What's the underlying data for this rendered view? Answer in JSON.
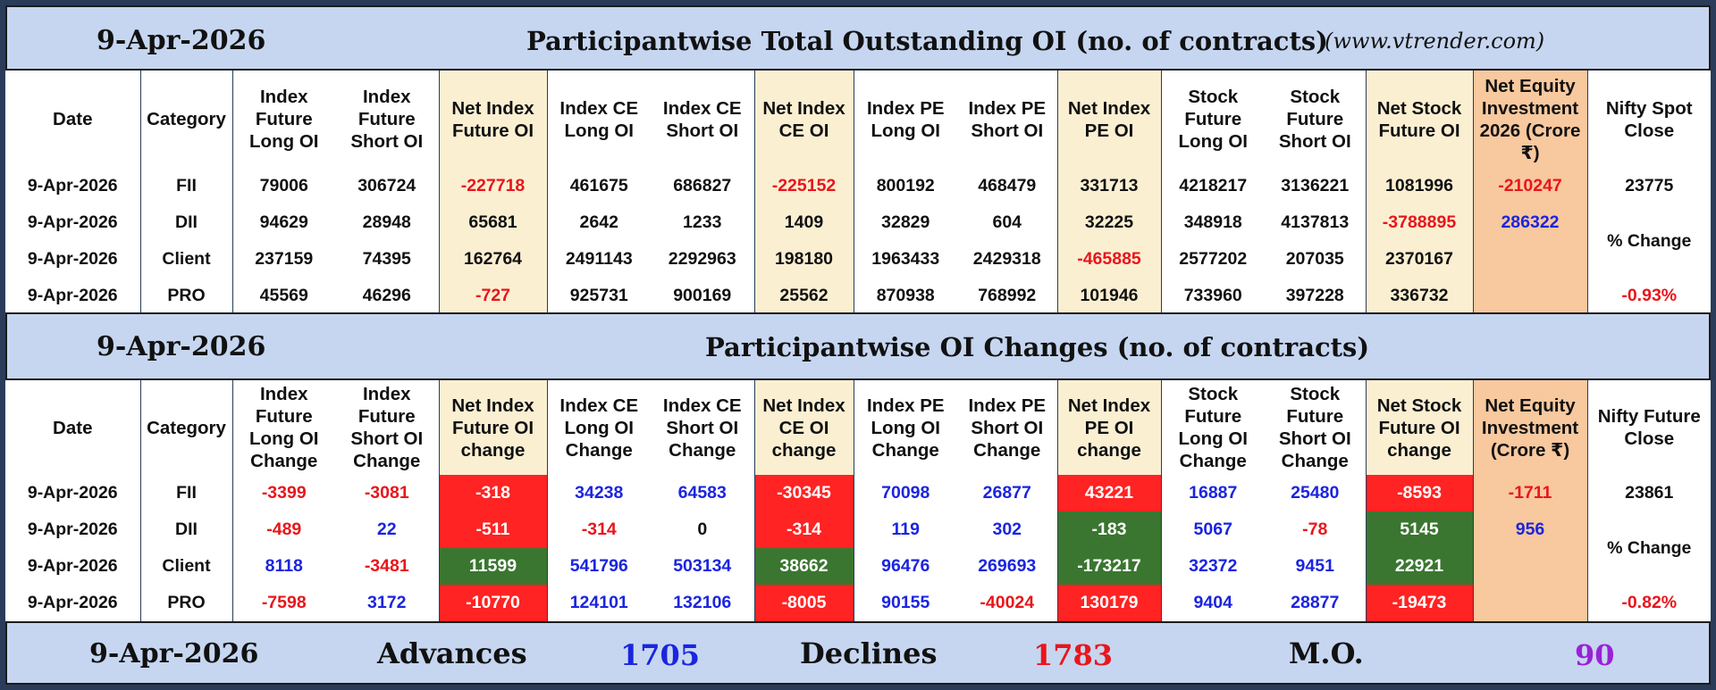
{
  "header1": {
    "date": "9-Apr-2026",
    "title": "Participantwise Total Outstanding OI (no. of contracts)",
    "site": "(www.vtrender.com)"
  },
  "table1": {
    "columns": [
      "Date",
      "Category",
      "Index Future Long OI",
      "Index Future Short OI",
      "Net Index Future OI",
      "Index CE Long OI",
      "Index CE Short OI",
      "Net Index CE OI",
      "Index PE Long OI",
      "Index PE Short OI",
      "Net Index PE OI",
      "Stock Future Long OI",
      "Stock Future Short OI",
      "Net Stock Future OI",
      "Net Equity Investment 2026 (Crore ₹)",
      "Nifty Spot Close"
    ],
    "rows": [
      [
        "9-Apr-2026",
        "FII",
        "79006",
        "306724",
        "-227718",
        "461675",
        "686827",
        "-225152",
        "800192",
        "468479",
        "331713",
        "4218217",
        "3136221",
        "1081996",
        "-210247"
      ],
      [
        "9-Apr-2026",
        "DII",
        "94629",
        "28948",
        "65681",
        "2642",
        "1233",
        "1409",
        "32829",
        "604",
        "32225",
        "348918",
        "4137813",
        "-3788895",
        "286322"
      ],
      [
        "9-Apr-2026",
        "Client",
        "237159",
        "74395",
        "162764",
        "2491143",
        "2292963",
        "198180",
        "1963433",
        "2429318",
        "-465885",
        "2577202",
        "207035",
        "2370167",
        ""
      ],
      [
        "9-Apr-2026",
        "PRO",
        "45569",
        "46296",
        "-727",
        "925731",
        "900169",
        "25562",
        "870938",
        "768992",
        "101946",
        "733960",
        "397228",
        "336732",
        ""
      ]
    ],
    "nifty": {
      "close": "23775",
      "change_label": "% Change",
      "change": "-0.93%"
    }
  },
  "header2": {
    "date": "9-Apr-2026",
    "title": "Participantwise OI Changes (no. of contracts)"
  },
  "table2": {
    "columns": [
      "Date",
      "Category",
      "Index Future Long OI Change",
      "Index Future Short OI Change",
      "Net Index Future OI change",
      "Index CE Long OI Change",
      "Index CE Short OI Change",
      "Net Index CE OI change",
      "Index PE Long OI Change",
      "Index PE Short OI Change",
      "Net Index PE OI change",
      "Stock Future Long OI Change",
      "Stock Future Short OI Change",
      "Net Stock Future OI change",
      "Net Equity Investment (Crore ₹)",
      "Nifty Future Close"
    ],
    "rows": [
      [
        "9-Apr-2026",
        "FII",
        "-3399",
        "-3081",
        "-318",
        "34238",
        "64583",
        "-30345",
        "70098",
        "26877",
        "43221",
        "16887",
        "25480",
        "-8593",
        "-1711"
      ],
      [
        "9-Apr-2026",
        "DII",
        "-489",
        "22",
        "-511",
        "-314",
        "0",
        "-314",
        "119",
        "302",
        "-183",
        "5067",
        "-78",
        "5145",
        "956"
      ],
      [
        "9-Apr-2026",
        "Client",
        "8118",
        "-3481",
        "11599",
        "541796",
        "503134",
        "38662",
        "96476",
        "269693",
        "-173217",
        "32372",
        "9451",
        "22921",
        ""
      ],
      [
        "9-Apr-2026",
        "PRO",
        "-7598",
        "3172",
        "-10770",
        "124101",
        "132106",
        "-8005",
        "90155",
        "-40024",
        "130179",
        "9404",
        "28877",
        "-19473",
        ""
      ]
    ],
    "nifty": {
      "close": "23861",
      "change_label": "% Change",
      "change": "-0.82%"
    }
  },
  "footer": {
    "date": "9-Apr-2026",
    "advances_label": "Advances",
    "advances": "1705",
    "declines_label": "Declines",
    "declines": "1783",
    "mo_label": "M.O.",
    "mo": "90"
  },
  "colors": {
    "frame": "#2a3c5a",
    "band": "#c6d6f0",
    "highlight_column": "#fbefd2",
    "equity_column": "#f8c89e",
    "negative": "#e8161c",
    "positive": "#1b25e0",
    "cell_red": "#ff2323",
    "cell_green": "#3a7630",
    "mo_value": "#9a21d8"
  }
}
